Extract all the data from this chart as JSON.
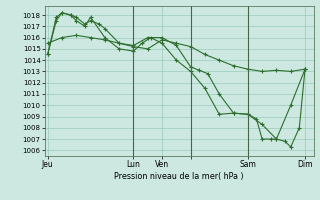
{
  "bg_color": "#cce8e0",
  "grid_color": "#99ccbb",
  "line_color": "#2d6e2d",
  "ylabel_text": "Pression niveau de la mer( hPa )",
  "ylim": [
    1005.5,
    1018.8
  ],
  "yticks": [
    1006,
    1007,
    1008,
    1009,
    1010,
    1011,
    1012,
    1013,
    1014,
    1015,
    1016,
    1017,
    1018
  ],
  "xtick_positions": [
    0.0,
    3.0,
    4.0,
    5.0,
    7.0,
    9.0
  ],
  "xtick_labels": [
    "Jeu",
    "Lun",
    "Ven",
    "",
    "Sam",
    "Dim"
  ],
  "vline_positions": [
    3.0,
    5.0,
    7.0
  ],
  "series1_x": [
    0.0,
    0.5,
    1.0,
    1.5,
    2.0,
    2.5,
    3.0,
    3.5,
    4.0,
    4.5,
    5.0,
    5.5,
    6.0,
    6.5,
    7.0,
    7.5,
    8.0,
    8.5,
    9.0
  ],
  "series1_y": [
    1015.5,
    1016.0,
    1016.2,
    1016.0,
    1015.8,
    1015.5,
    1015.2,
    1015.0,
    1015.8,
    1015.5,
    1015.2,
    1014.5,
    1014.0,
    1013.5,
    1013.2,
    1013.0,
    1013.1,
    1013.0,
    1013.2
  ],
  "series2_x": [
    0.0,
    0.3,
    0.5,
    0.8,
    1.0,
    1.3,
    1.5,
    1.8,
    2.0,
    2.5,
    3.0,
    3.5,
    4.0,
    4.5,
    5.0,
    5.3,
    5.6,
    6.0,
    6.5,
    7.0,
    7.5,
    8.0,
    8.5,
    9.0
  ],
  "series2_y": [
    1014.5,
    1017.5,
    1018.2,
    1018.0,
    1017.8,
    1017.2,
    1017.5,
    1017.2,
    1016.8,
    1015.5,
    1015.3,
    1016.0,
    1016.0,
    1015.3,
    1013.4,
    1013.1,
    1012.8,
    1011.0,
    1009.3,
    1009.2,
    1008.3,
    1007.0,
    1010.0,
    1013.2
  ],
  "series3_x": [
    0.0,
    0.3,
    0.5,
    0.8,
    1.0,
    1.3,
    1.5,
    2.0,
    2.5,
    3.0,
    3.3,
    3.6,
    4.0,
    4.5,
    5.0,
    5.5,
    6.0,
    6.5,
    7.0,
    7.3,
    7.5,
    7.8,
    8.0,
    8.3,
    8.5,
    8.8,
    9.0
  ],
  "series3_y": [
    1014.5,
    1017.8,
    1018.2,
    1018.0,
    1017.5,
    1017.0,
    1017.8,
    1016.0,
    1015.0,
    1014.8,
    1015.5,
    1016.0,
    1015.5,
    1014.0,
    1013.0,
    1011.5,
    1009.2,
    1009.3,
    1009.2,
    1008.8,
    1007.0,
    1007.0,
    1007.0,
    1006.8,
    1006.3,
    1008.0,
    1013.2
  ]
}
